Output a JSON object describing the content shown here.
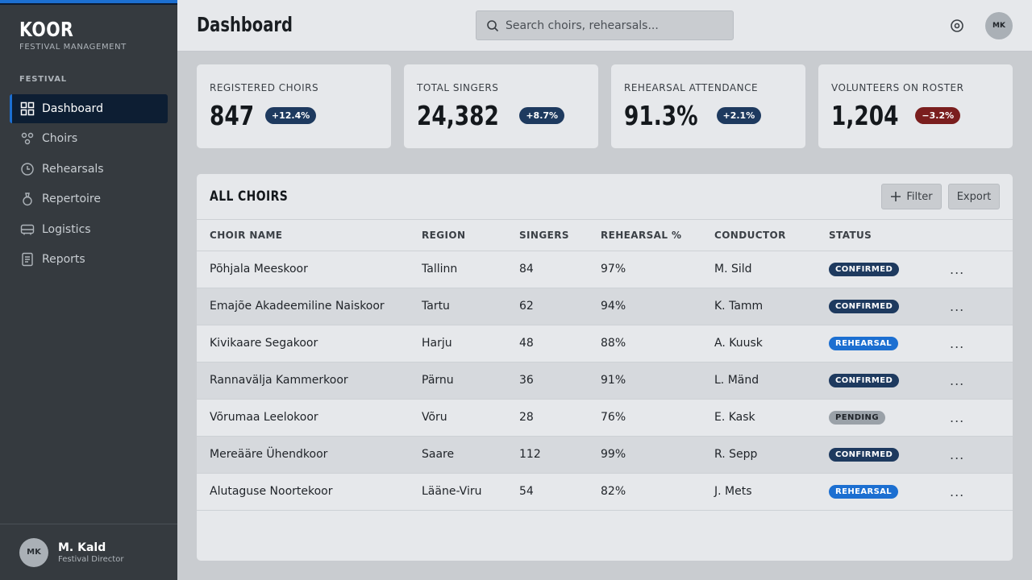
{
  "brand": {
    "name": "KOOR",
    "subtitle": "FESTIVAL MANAGEMENT"
  },
  "sidebar": {
    "section_label": "FESTIVAL",
    "items": [
      {
        "label": "Dashboard",
        "icon": "grid-icon",
        "active": true
      },
      {
        "label": "Choirs",
        "icon": "people-icon"
      },
      {
        "label": "Rehearsals",
        "icon": "clock-icon"
      },
      {
        "label": "Repertoire",
        "icon": "medal-icon"
      },
      {
        "label": "Logistics",
        "icon": "bus-icon"
      },
      {
        "label": "Reports",
        "icon": "document-icon"
      }
    ],
    "user": {
      "initials": "MK",
      "name": "M. Kald",
      "role": "Festival Director"
    }
  },
  "header": {
    "title": "Dashboard",
    "search_placeholder": "Search choirs, rehearsals...",
    "avatar_initials": "MK"
  },
  "kpis": [
    {
      "label": "REGISTERED CHOIRS",
      "value": "847",
      "delta": "+12.4%",
      "trend": "up"
    },
    {
      "label": "TOTAL SINGERS",
      "value": "24,382",
      "delta": "+8.7%",
      "trend": "up"
    },
    {
      "label": "REHEARSAL ATTENDANCE",
      "value": "91.3%",
      "delta": "+2.1%",
      "trend": "up"
    },
    {
      "label": "VOLUNTEERS ON ROSTER",
      "value": "1,204",
      "delta": "−3.2%",
      "trend": "down"
    }
  ],
  "table": {
    "title": "ALL CHOIRS",
    "filter_label": "Filter",
    "export_label": "Export",
    "columns": [
      "CHOIR NAME",
      "REGION",
      "SINGERS",
      "REHEARSAL %",
      "CONDUCTOR",
      "STATUS"
    ],
    "rows": [
      {
        "name": "Põhjala Meeskoor",
        "region": "Tallinn",
        "singers": "84",
        "rehearsal": "97%",
        "conductor": "M. Sild",
        "status": "CONFIRMED"
      },
      {
        "name": "Emajõe Akadeemiline Naiskoor",
        "region": "Tartu",
        "singers": "62",
        "rehearsal": "94%",
        "conductor": "K. Tamm",
        "status": "CONFIRMED"
      },
      {
        "name": "Kivikaare Segakoor",
        "region": "Harju",
        "singers": "48",
        "rehearsal": "88%",
        "conductor": "A. Kuusk",
        "status": "REHEARSAL"
      },
      {
        "name": "Rannavälja Kammerkoor",
        "region": "Pärnu",
        "singers": "36",
        "rehearsal": "91%",
        "conductor": "L. Mänd",
        "status": "CONFIRMED"
      },
      {
        "name": "Võrumaa Leelokoor",
        "region": "Võru",
        "singers": "28",
        "rehearsal": "76%",
        "conductor": "E. Kask",
        "status": "PENDING"
      },
      {
        "name": "Mereääre Ühendkoor",
        "region": "Saare",
        "singers": "112",
        "rehearsal": "99%",
        "conductor": "R. Sepp",
        "status": "CONFIRMED"
      },
      {
        "name": "Alutaguse Noortekoor",
        "region": "Lääne-Viru",
        "singers": "54",
        "rehearsal": "82%",
        "conductor": "J. Mets",
        "status": "REHEARSAL"
      }
    ],
    "row_action": "..."
  },
  "colors": {
    "accent": "#1c6fd1",
    "navy": "#1e3a5f",
    "negative": "#7a1e1e",
    "pending": "#9aa1a8",
    "sidebar": "#353a3f"
  }
}
